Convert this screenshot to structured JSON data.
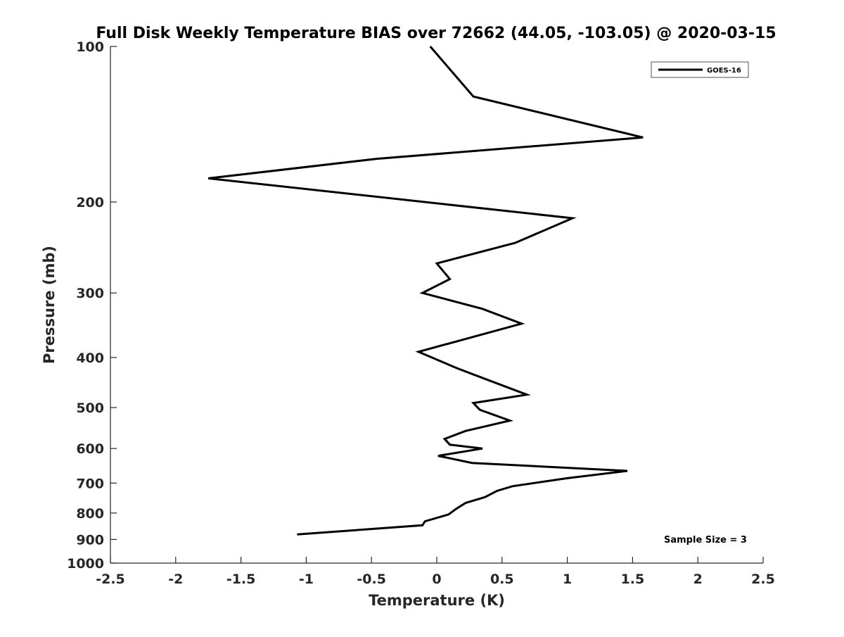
{
  "chart_data": {
    "type": "line",
    "title": "Full Disk Weekly Temperature BIAS over 72662 (44.05, -103.05) @ 2020-03-15",
    "xlabel": "Temperature (K)",
    "ylabel": "Pressure (mb)",
    "xlim": [
      -2.5,
      2.5
    ],
    "ylim": [
      1000,
      100
    ],
    "y_scale": "log",
    "x_ticks": [
      -2.5,
      -2,
      -1.5,
      -1,
      -0.5,
      0,
      0.5,
      1,
      1.5,
      2,
      2.5
    ],
    "x_tick_labels": [
      "-2.5",
      "-2",
      "-1.5",
      "-1",
      "-0.5",
      "0",
      "0.5",
      "1",
      "1.5",
      "2",
      "2.5"
    ],
    "y_ticks": [
      100,
      200,
      300,
      400,
      500,
      600,
      700,
      800,
      900,
      1000
    ],
    "y_tick_labels": [
      "100",
      "200",
      "300",
      "400",
      "500",
      "600",
      "700",
      "800",
      "900",
      "1000"
    ],
    "grid": false,
    "legend_position": "top-right",
    "annotation": "Sample Size = 3",
    "series": [
      {
        "name": "GOES-16",
        "color": "#000000",
        "points": [
          {
            "x": -0.05,
            "p": 100
          },
          {
            "x": 0.28,
            "p": 125
          },
          {
            "x": 1.58,
            "p": 150
          },
          {
            "x": -0.46,
            "p": 165
          },
          {
            "x": -1.75,
            "p": 180
          },
          {
            "x": 1.04,
            "p": 215
          },
          {
            "x": 0.6,
            "p": 240
          },
          {
            "x": 0.0,
            "p": 263
          },
          {
            "x": 0.1,
            "p": 282
          },
          {
            "x": -0.11,
            "p": 300
          },
          {
            "x": 0.35,
            "p": 322
          },
          {
            "x": 0.65,
            "p": 344
          },
          {
            "x": -0.14,
            "p": 390
          },
          {
            "x": 0.16,
            "p": 420
          },
          {
            "x": 0.37,
            "p": 440
          },
          {
            "x": 0.69,
            "p": 472
          },
          {
            "x": 0.28,
            "p": 490
          },
          {
            "x": 0.33,
            "p": 505
          },
          {
            "x": 0.56,
            "p": 530
          },
          {
            "x": 0.22,
            "p": 555
          },
          {
            "x": 0.06,
            "p": 575
          },
          {
            "x": 0.1,
            "p": 590
          },
          {
            "x": 0.35,
            "p": 600
          },
          {
            "x": 0.01,
            "p": 620
          },
          {
            "x": 0.27,
            "p": 640
          },
          {
            "x": 1.46,
            "p": 663
          },
          {
            "x": 1.0,
            "p": 685
          },
          {
            "x": 0.58,
            "p": 710
          },
          {
            "x": 0.46,
            "p": 725
          },
          {
            "x": 0.37,
            "p": 745
          },
          {
            "x": 0.22,
            "p": 765
          },
          {
            "x": 0.15,
            "p": 785
          },
          {
            "x": 0.09,
            "p": 805
          },
          {
            "x": -0.09,
            "p": 830
          },
          {
            "x": -0.11,
            "p": 845
          },
          {
            "x": -1.07,
            "p": 880
          }
        ]
      }
    ]
  }
}
